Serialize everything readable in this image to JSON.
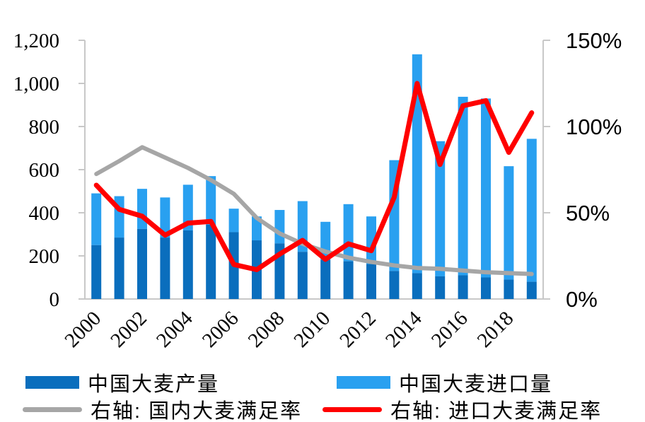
{
  "chart_data": {
    "type": "bar",
    "subtype": "stacked-bar-with-lines",
    "title": "",
    "categories": [
      "2000",
      "2001",
      "2002",
      "2003",
      "2004",
      "2005",
      "2006",
      "2007",
      "2008",
      "2009",
      "2010",
      "2011",
      "2012",
      "2013",
      "2014",
      "2015",
      "2016",
      "2017",
      "2018",
      "2019"
    ],
    "x_tick_labels": [
      "2000",
      "2002",
      "2004",
      "2006",
      "2008",
      "2010",
      "2012",
      "2014",
      "2016",
      "2018"
    ],
    "x_tick_every": 2,
    "grid": false,
    "legend_position": "bottom",
    "series": [
      {
        "name": "中国大麦产量",
        "type": "bar",
        "stack": "total",
        "axis": "left",
        "color": "#0A6EBD",
        "values": [
          250,
          285,
          325,
          285,
          318,
          345,
          310,
          272,
          258,
          219,
          183,
          175,
          162,
          130,
          120,
          105,
          110,
          100,
          90,
          80
        ]
      },
      {
        "name": "中国大麦进口量",
        "type": "bar",
        "stack": "total",
        "axis": "left",
        "color": "#29A0F0",
        "values": [
          240,
          192,
          186,
          186,
          212,
          225,
          109,
          111,
          155,
          235,
          175,
          265,
          221,
          514,
          1015,
          627,
          828,
          830,
          526,
          663
        ]
      },
      {
        "name": "右轴: 国内大麦满足率",
        "type": "line",
        "axis": "right",
        "color": "#A6A6A6",
        "values_percent": [
          72.5,
          80,
          88,
          82,
          76,
          69,
          61,
          47,
          38,
          32,
          27.5,
          24,
          21.5,
          19.5,
          18,
          17.5,
          16.5,
          15.5,
          15,
          14.5
        ]
      },
      {
        "name": "右轴: 进口大麦满足率",
        "type": "line",
        "axis": "right",
        "color": "#FF0000",
        "values_percent": [
          66,
          52,
          48,
          37,
          44,
          45,
          20,
          17,
          26,
          34,
          23,
          32,
          28,
          59,
          125,
          78,
          112,
          115,
          85,
          108
        ]
      }
    ],
    "left_axis": {
      "min": 0,
      "max": 1200,
      "ticks": [
        {
          "value": 0,
          "label": "0"
        },
        {
          "value": 200,
          "label": "200"
        },
        {
          "value": 400,
          "label": "400"
        },
        {
          "value": 600,
          "label": "600"
        },
        {
          "value": 800,
          "label": "800"
        },
        {
          "value": 1000,
          "label": "1,000"
        },
        {
          "value": 1200,
          "label": "1,200"
        }
      ]
    },
    "right_axis": {
      "min": 0,
      "max": 150,
      "ticks": [
        {
          "value": 0,
          "label": "0%"
        },
        {
          "value": 50,
          "label": "50%"
        },
        {
          "value": 100,
          "label": "100%"
        },
        {
          "value": 150,
          "label": "150%"
        }
      ]
    },
    "axis_line_color": "#C8C8C8",
    "text_color": "#000000"
  },
  "legend": {
    "items": [
      {
        "label": "中国大麦产量",
        "swatch": "bar",
        "color": "#0A6EBD"
      },
      {
        "label": "中国大麦进口量",
        "swatch": "bar",
        "color": "#29A0F0"
      },
      {
        "label": "右轴: 国内大麦满足率",
        "swatch": "line",
        "color": "#A6A6A6"
      },
      {
        "label": "右轴: 进口大麦满足率",
        "swatch": "line",
        "color": "#FF0000"
      }
    ]
  }
}
